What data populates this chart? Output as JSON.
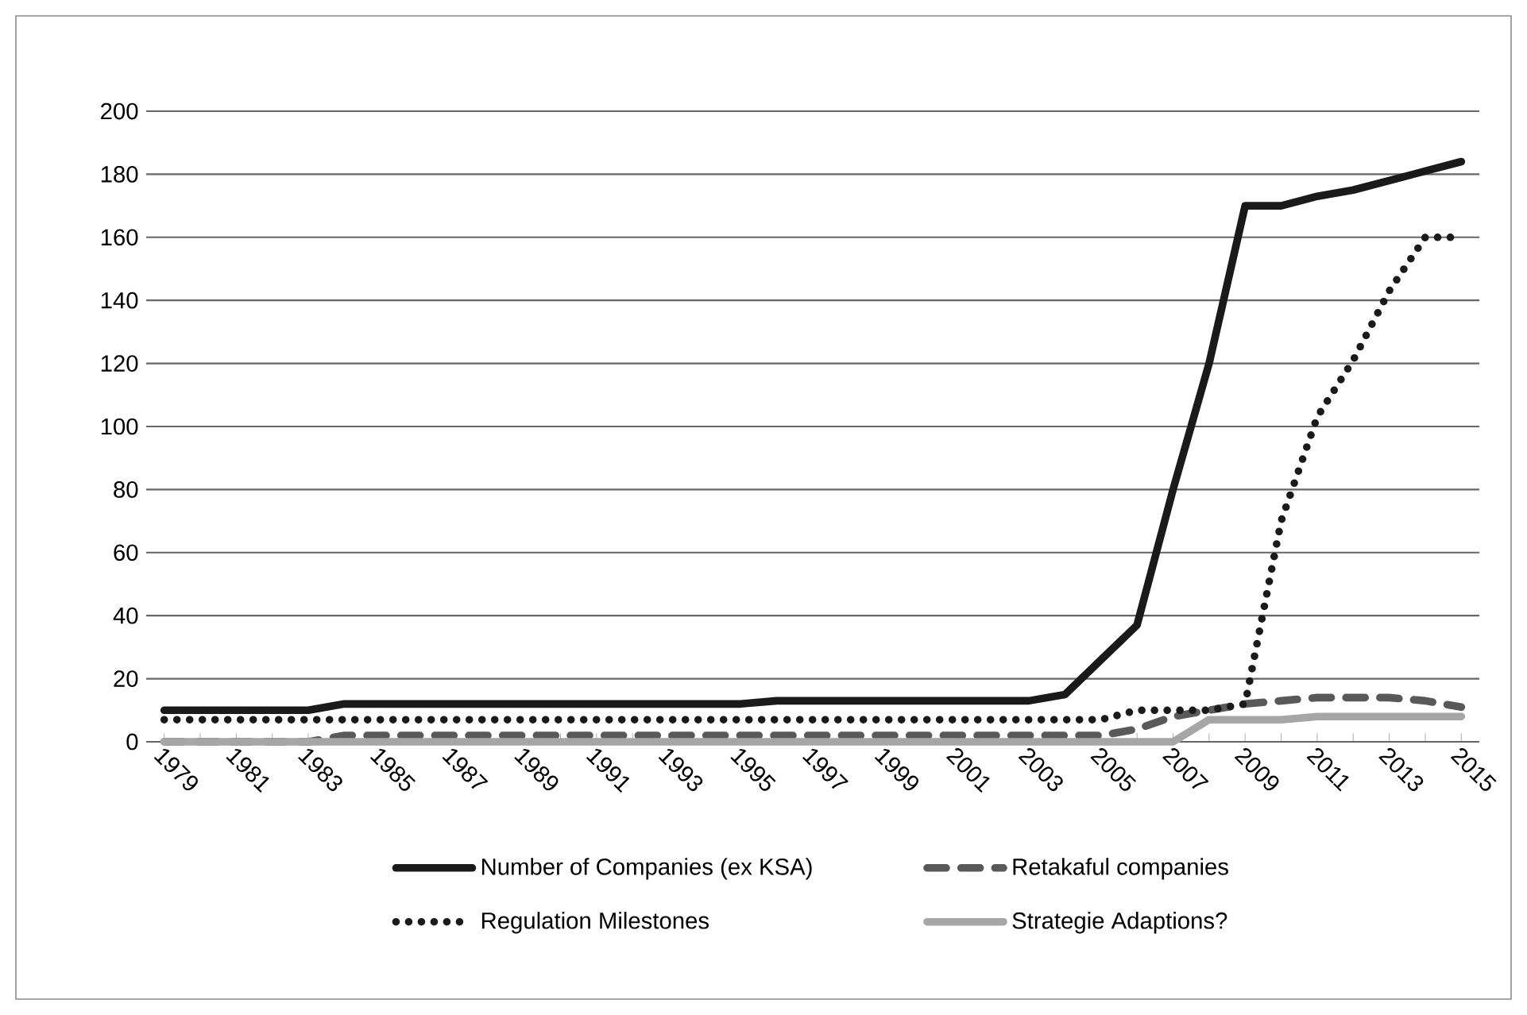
{
  "chart_data": {
    "type": "line",
    "categories": [
      "1979",
      null,
      "1981",
      null,
      "1983",
      null,
      "1985",
      null,
      "1987",
      null,
      "1989",
      null,
      "1991",
      null,
      "1993",
      null,
      "1995",
      null,
      "1997",
      null,
      "1999",
      null,
      "2001",
      null,
      "2003",
      null,
      "2005",
      null,
      "2007",
      null,
      "2009",
      null,
      "2011",
      null,
      "2013",
      null,
      "2015"
    ],
    "series": [
      {
        "name": "Number of Companies (ex KSA)",
        "color": "#1a1a1a",
        "line_style": "solid",
        "values": [
          10,
          10,
          10,
          10,
          10,
          12,
          12,
          12,
          12,
          12,
          12,
          12,
          12,
          12,
          12,
          12,
          12,
          13,
          13,
          13,
          13,
          13,
          13,
          13,
          13,
          15,
          26,
          37,
          80,
          120,
          170,
          170,
          173,
          175,
          178,
          181,
          184
        ]
      },
      {
        "name": "Retakaful companies",
        "color": "#595959",
        "line_style": "dashed",
        "values": [
          0,
          0,
          0,
          0,
          0,
          2,
          2,
          2,
          2,
          2,
          2,
          2,
          2,
          2,
          2,
          2,
          2,
          2,
          2,
          2,
          2,
          2,
          2,
          2,
          2,
          2,
          2,
          4,
          8,
          10,
          12,
          13,
          14,
          14,
          14,
          13,
          11
        ]
      },
      {
        "name": "Regulation Milestones",
        "color": "#1a1a1a",
        "line_style": "dotted",
        "values": [
          7,
          7,
          7,
          7,
          7,
          7,
          7,
          7,
          7,
          7,
          7,
          7,
          7,
          7,
          7,
          7,
          7,
          7,
          7,
          7,
          7,
          7,
          7,
          7,
          7,
          7,
          7,
          10,
          10,
          10,
          12,
          70,
          103,
          121,
          143,
          160,
          160
        ]
      },
      {
        "name": "Strategie Adaptions?",
        "color": "#a6a6a6",
        "line_style": "solid",
        "values": [
          0,
          0,
          0,
          0,
          0,
          0,
          0,
          0,
          0,
          0,
          0,
          0,
          0,
          0,
          0,
          0,
          0,
          0,
          0,
          0,
          0,
          0,
          0,
          0,
          0,
          0,
          0,
          0,
          0,
          7,
          7,
          7,
          8,
          8,
          8,
          8,
          8
        ]
      }
    ],
    "ylim": [
      0,
      200
    ],
    "yticks": [
      0,
      20,
      40,
      60,
      80,
      100,
      120,
      140,
      160,
      180,
      200
    ],
    "grid": "y",
    "legend": "bottom",
    "marker": "none"
  }
}
